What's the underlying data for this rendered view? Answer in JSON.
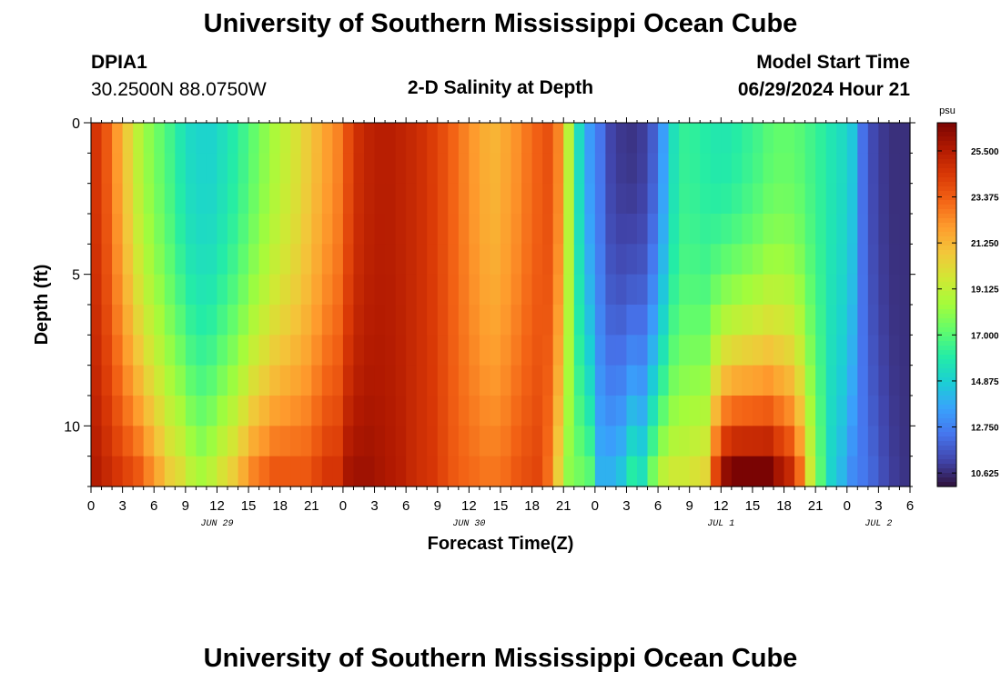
{
  "header": {
    "title_top": "University of Southern Mississippi Ocean Cube",
    "station_id": "DPIA1",
    "station_coords": "30.2500N  88.0750W",
    "plot_title": "2-D Salinity at Depth",
    "model_start_label": "Model Start Time",
    "model_start_value": "06/29/2024 Hour 21",
    "title_bottom": "University of Southern Mississippi Ocean Cube"
  },
  "chart_data": {
    "type": "heatmap",
    "title": "2-D Salinity at Depth",
    "xlabel": "Forecast Time(Z)",
    "ylabel": "Depth (ft)",
    "x_tick_labels": [
      "0",
      "3",
      "6",
      "9",
      "12",
      "15",
      "18",
      "21",
      "0",
      "3",
      "6",
      "9",
      "12",
      "15",
      "18",
      "21",
      "0",
      "3",
      "6",
      "9",
      "12",
      "15",
      "18",
      "21",
      "0",
      "3",
      "6"
    ],
    "x_tick_step_hours": 3,
    "x_range_hours_from_jun29_00z": [
      0,
      78
    ],
    "date_labels": [
      {
        "label": "JUN 29",
        "hour": 12
      },
      {
        "label": "JUN 30",
        "hour": 36
      },
      {
        "label": "JUL 1",
        "hour": 60
      },
      {
        "label": "JUL 2",
        "hour": 75
      }
    ],
    "y_ticks": [
      0,
      5,
      10
    ],
    "y_range": [
      0,
      12
    ],
    "y_reversed": true,
    "colorbar": {
      "unit": "psu",
      "min": 10.0,
      "max": 26.8,
      "tick_labels": [
        "25.500",
        "23.375",
        "21.250",
        "19.125",
        "17.000",
        "14.875",
        "12.750",
        "10.625"
      ],
      "tick_values": [
        25.5,
        23.375,
        21.25,
        19.125,
        17.0,
        14.875,
        12.75,
        10.625
      ],
      "colormap": [
        "#30123b",
        "#4145ab",
        "#4675ed",
        "#39a2fc",
        "#1bcfd4",
        "#24eca6",
        "#61fc6c",
        "#a4fc3b",
        "#d1e834",
        "#f3c63a",
        "#fe9b2d",
        "#f36315",
        "#d93806",
        "#b11901",
        "#7a0403"
      ]
    },
    "sample_hours": [
      0,
      1,
      2,
      3,
      4,
      5,
      6,
      7,
      8,
      9,
      10,
      11,
      12,
      13,
      14,
      15,
      16,
      17,
      18,
      19,
      20,
      21,
      22,
      23,
      24,
      25,
      26,
      27,
      28,
      29,
      30,
      31,
      32,
      33,
      34,
      35,
      36,
      37,
      38,
      39,
      40,
      41,
      42,
      43,
      44,
      45,
      46,
      47,
      48,
      49,
      50,
      51,
      52,
      53,
      54,
      55,
      56,
      57,
      58,
      59,
      60,
      61,
      62,
      63,
      64,
      65,
      66,
      67,
      68,
      69,
      70,
      71,
      72,
      73,
      74,
      75,
      76,
      77
    ],
    "depths_ft": [
      0,
      11.5
    ],
    "surface_psu": [
      24.5,
      23.5,
      22.0,
      20.5,
      19.0,
      18.0,
      17.3,
      16.6,
      15.8,
      15.2,
      15.0,
      15.0,
      15.4,
      15.9,
      16.5,
      17.2,
      17.9,
      18.6,
      19.2,
      19.8,
      20.5,
      21.2,
      21.9,
      22.5,
      23.8,
      24.8,
      25.2,
      25.4,
      25.4,
      25.2,
      25.0,
      24.7,
      24.3,
      23.8,
      23.2,
      22.6,
      22.0,
      21.5,
      21.3,
      21.7,
      22.2,
      22.8,
      23.3,
      23.7,
      22.5,
      19.0,
      15.3,
      13.4,
      12.4,
      11.2,
      10.9,
      10.8,
      11.0,
      11.8,
      13.5,
      15.5,
      16.3,
      16.2,
      16.0,
      15.8,
      15.8,
      16.0,
      16.3,
      16.6,
      17.0,
      17.2,
      17.2,
      17.0,
      16.6,
      16.2,
      15.7,
      15.3,
      14.6,
      12.3,
      11.3,
      10.9,
      10.7,
      10.7
    ],
    "bottom_psu": [
      25.5,
      25.0,
      24.5,
      24.0,
      23.5,
      22.5,
      21.5,
      20.5,
      20.0,
      19.0,
      18.5,
      19.0,
      19.8,
      20.5,
      21.5,
      22.5,
      23.0,
      23.5,
      23.5,
      23.5,
      23.5,
      24.0,
      24.5,
      24.5,
      25.8,
      26.0,
      26.0,
      25.8,
      25.6,
      25.4,
      25.0,
      24.7,
      24.5,
      24.0,
      23.5,
      23.2,
      23.0,
      22.8,
      22.8,
      23.0,
      23.5,
      23.8,
      24.0,
      23.0,
      20.5,
      18.0,
      17.5,
      17.0,
      14.0,
      14.0,
      14.5,
      16.0,
      15.5,
      17.5,
      19.0,
      19.5,
      19.5,
      19.8,
      20.2,
      24.0,
      26.3,
      26.8,
      26.8,
      26.8,
      26.8,
      25.8,
      25.0,
      23.0,
      19.5,
      17.0,
      15.0,
      14.2,
      13.0,
      12.5,
      12.0,
      11.4,
      11.0,
      10.8
    ]
  }
}
